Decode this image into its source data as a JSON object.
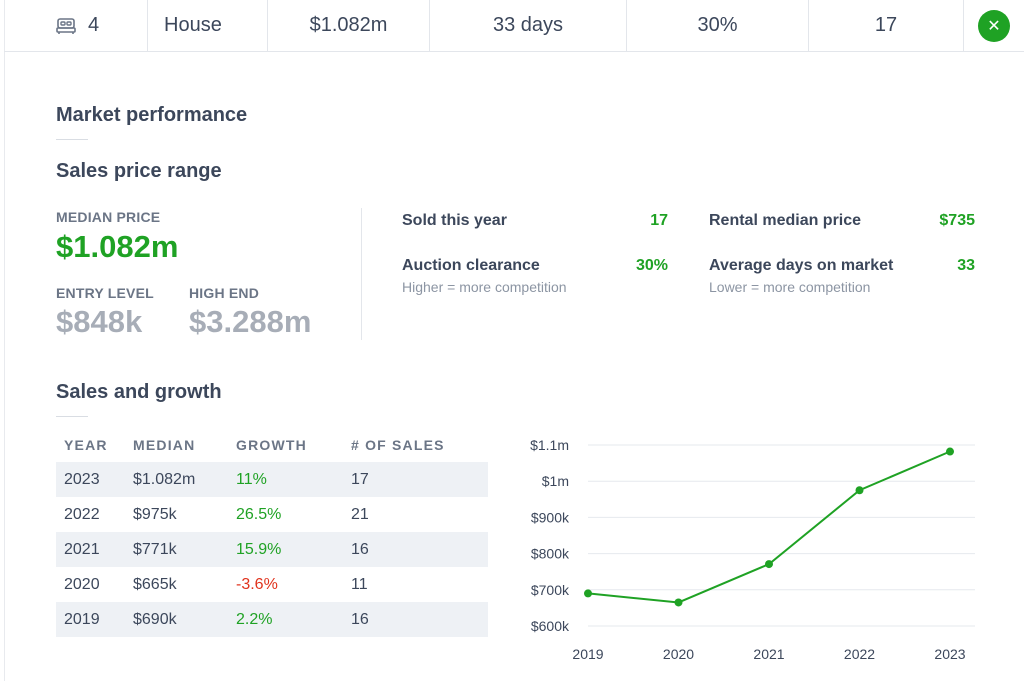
{
  "summary": {
    "bed_icon": "bed-icon",
    "bedrooms": "4",
    "property_type": "House",
    "median_price": "$1.082m",
    "days_on_market": "33 days",
    "auction_clearance": "30%",
    "sold": "17",
    "close_icon": "close-icon",
    "close_glyph": "✕"
  },
  "market": {
    "title": "Market performance"
  },
  "price_range": {
    "title": "Sales price range",
    "median_label": "MEDIAN PRICE",
    "median_value": "$1.082m",
    "entry_label": "ENTRY LEVEL",
    "entry_value": "$848k",
    "high_label": "HIGH END",
    "high_value": "$3.288m"
  },
  "metrics": [
    {
      "label": "Sold this year",
      "value": "17",
      "sub": ""
    },
    {
      "label": "Auction clearance",
      "value": "30%",
      "sub": "Higher = more competition"
    },
    {
      "label": "Rental median price",
      "value": "$735",
      "sub": ""
    },
    {
      "label": "Average days on market",
      "value": "33",
      "sub": "Lower = more competition"
    }
  ],
  "growth": {
    "title": "Sales and growth",
    "headers": [
      "YEAR",
      "MEDIAN",
      "GROWTH",
      "# OF SALES"
    ],
    "rows": [
      {
        "year": "2023",
        "median": "$1.082m",
        "growth": "11%",
        "sales": "17"
      },
      {
        "year": "2022",
        "median": "$975k",
        "growth": "26.5%",
        "sales": "21"
      },
      {
        "year": "2021",
        "median": "$771k",
        "growth": "15.9%",
        "sales": "16"
      },
      {
        "year": "2020",
        "median": "$665k",
        "growth": "-3.6%",
        "sales": "11"
      },
      {
        "year": "2019",
        "median": "$690k",
        "growth": "2.2%",
        "sales": "16"
      }
    ]
  },
  "colors": {
    "accent": "#1fa224",
    "negative": "#e0321c",
    "muted": "#a7adb7"
  },
  "chart_data": {
    "type": "line",
    "x": [
      "2019",
      "2020",
      "2021",
      "2022",
      "2023"
    ],
    "series": [
      {
        "values": [
          690,
          665,
          771,
          975,
          1082
        ]
      }
    ],
    "ylim": [
      600,
      1100
    ],
    "yticks": [
      600,
      700,
      800,
      900,
      1000,
      1100
    ],
    "ytick_labels": [
      "$600k",
      "$700k",
      "$800k",
      "$900k",
      "$1m",
      "$1.1m"
    ],
    "grid": true,
    "color": "#1fa224"
  }
}
